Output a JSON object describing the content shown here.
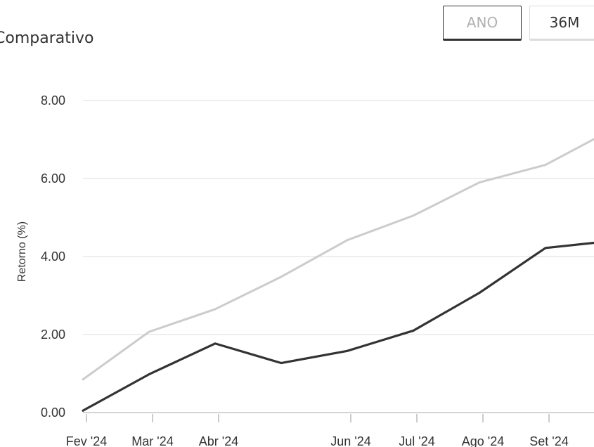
{
  "header": {
    "title": "Comparativo",
    "buttons": [
      {
        "label": "ANO",
        "active": false
      },
      {
        "label": "36M",
        "active": true
      }
    ]
  },
  "chart_data": {
    "type": "line",
    "title": "Comparativo",
    "xlabel": "",
    "ylabel": "Retorno (%)",
    "ylim": [
      0,
      8
    ],
    "y_ticks": [
      0,
      2,
      4,
      6,
      8
    ],
    "y_tick_labels": [
      "0.00",
      "2.00",
      "4.00",
      "6.00",
      "8.00"
    ],
    "x_tick_labels": [
      "Fev '24",
      "Mar '24",
      "Abr '24",
      "Jun '24",
      "Jul '24",
      "Ago '24",
      "Set '24"
    ],
    "x_tick_positions": [
      0,
      1,
      2,
      4,
      5,
      6,
      7
    ],
    "x": [
      0,
      1,
      2,
      3,
      4,
      5,
      6,
      7,
      8
    ],
    "grid": true,
    "series": [
      {
        "color": "#cccccc",
        "values": [
          0.85,
          2.07,
          2.65,
          3.48,
          4.42,
          5.05,
          5.9,
          6.35,
          7.25
        ]
      },
      {
        "color": "#333333",
        "values": [
          0.05,
          0.98,
          1.77,
          1.27,
          1.58,
          2.1,
          3.07,
          4.22,
          4.4
        ]
      }
    ]
  }
}
